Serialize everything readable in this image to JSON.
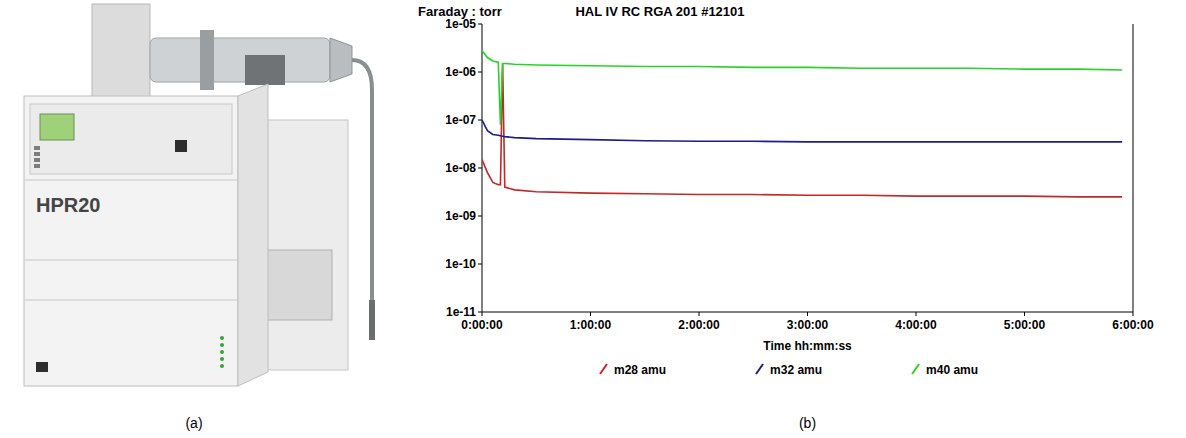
{
  "chart_data": {
    "type": "line",
    "title": "HAL IV RC RGA 201 #12101",
    "y_label": "Faraday : torr",
    "x_label": "Time  hh:mm:ss",
    "log": "y",
    "grid": false,
    "legend": "bottom",
    "xlim": [
      0,
      6
    ],
    "xticks": [
      {
        "value": 0,
        "label": "0:00:00"
      },
      {
        "value": 1,
        "label": "1:00:00"
      },
      {
        "value": 2,
        "label": "2:00:00"
      },
      {
        "value": 3,
        "label": "3:00:00"
      },
      {
        "value": 4,
        "label": "4:00:00"
      },
      {
        "value": 5,
        "label": "5:00:00"
      },
      {
        "value": 6,
        "label": "6:00:00"
      }
    ],
    "ylim": [
      1e-11,
      1e-05
    ],
    "yticks": [
      {
        "value": 1e-11,
        "label": "1e-11"
      },
      {
        "value": 1e-10,
        "label": "1e-10"
      },
      {
        "value": 1e-09,
        "label": "1e-09"
      },
      {
        "value": 1e-08,
        "label": "1e-08"
      },
      {
        "value": 1e-07,
        "label": "1e-07"
      },
      {
        "value": 1e-06,
        "label": "1e-06"
      },
      {
        "value": 1e-05,
        "label": "1e-05"
      }
    ],
    "x": [
      0,
      0.05,
      0.1,
      0.15,
      0.17,
      0.19,
      0.21,
      0.3,
      0.5,
      1,
      1.5,
      2,
      2.5,
      3,
      3.5,
      4,
      4.5,
      5,
      5.5,
      5.9
    ],
    "series": [
      {
        "name": "m28 amu",
        "color": "#c0282a",
        "values": [
          1.5e-08,
          8e-09,
          5e-09,
          4.5e-09,
          4.5e-09,
          1.5e-06,
          4e-09,
          3.5e-09,
          3.2e-09,
          3e-09,
          2.9e-09,
          2.8e-09,
          2.8e-09,
          2.7e-09,
          2.7e-09,
          2.6e-09,
          2.6e-09,
          2.6e-09,
          2.5e-09,
          2.5e-09
        ]
      },
      {
        "name": "m32 amu",
        "color": "#1c1c8c",
        "values": [
          1e-07,
          6e-08,
          5e-08,
          4.8e-08,
          4.7e-08,
          4.6e-08,
          4.5e-08,
          4.3e-08,
          4.1e-08,
          3.9e-08,
          3.7e-08,
          3.6e-08,
          3.6e-08,
          3.5e-08,
          3.5e-08,
          3.5e-08,
          3.5e-08,
          3.5e-08,
          3.5e-08,
          3.5e-08
        ]
      },
      {
        "name": "m40 amu",
        "color": "#2bd12b",
        "values": [
          2.8e-06,
          2e-06,
          1.7e-06,
          1.6e-06,
          8e-08,
          1.5e-06,
          1.5e-06,
          1.45e-06,
          1.4e-06,
          1.35e-06,
          1.3e-06,
          1.3e-06,
          1.25e-06,
          1.25e-06,
          1.2e-06,
          1.2e-06,
          1.2e-06,
          1.15e-06,
          1.15e-06,
          1.1e-06
        ]
      }
    ]
  },
  "figure": {
    "panel_labels": [
      "(a)",
      "(b)"
    ],
    "device_label": "HPR20"
  }
}
